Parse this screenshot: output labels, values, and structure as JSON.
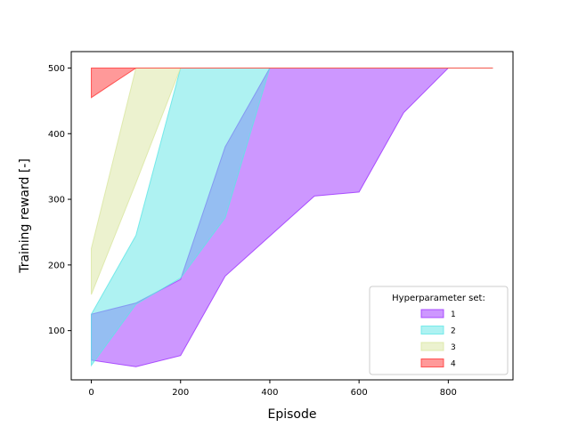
{
  "chart_data": {
    "type": "area",
    "title": "",
    "xlabel": "Episode",
    "ylabel": "Training reward [-]",
    "xlim": [
      -45,
      945
    ],
    "ylim": [
      25,
      525
    ],
    "xticks": [
      0,
      200,
      400,
      600,
      800
    ],
    "yticks": [
      100,
      200,
      300,
      400,
      500
    ],
    "grid": false,
    "legend": {
      "title": "Hyperparameter set:",
      "placement": "lower-right"
    },
    "series": [
      {
        "name": "1",
        "color": "#9b30ff",
        "x": [
          0,
          100,
          200,
          300,
          400,
          500,
          600,
          700,
          800,
          900
        ],
        "upper": [
          125,
          142,
          178,
          380,
          500,
          500,
          500,
          500,
          500,
          500
        ],
        "lower": [
          55,
          45,
          62,
          183,
          244,
          305,
          311,
          432,
          500,
          500
        ]
      },
      {
        "name": "2",
        "color": "#5ee6e6",
        "x": [
          0,
          100,
          200,
          300,
          400,
          500,
          600,
          700,
          800,
          900
        ],
        "upper": [
          125,
          245,
          500,
          500,
          500,
          500,
          500,
          500,
          500,
          500
        ],
        "lower": [
          47,
          140,
          180,
          272,
          500,
          500,
          500,
          500,
          500,
          500
        ]
      },
      {
        "name": "3",
        "color": "#d9e6a0",
        "x": [
          0,
          100,
          200,
          300,
          400,
          500,
          600,
          700,
          800,
          900
        ],
        "upper": [
          225,
          500,
          500,
          500,
          500,
          500,
          500,
          500,
          500,
          500
        ],
        "lower": [
          155,
          325,
          500,
          500,
          500,
          500,
          500,
          500,
          500,
          500
        ]
      },
      {
        "name": "4",
        "color": "#ff3333",
        "x": [
          0,
          100,
          200,
          300,
          400,
          500,
          600,
          700,
          800,
          900
        ],
        "upper": [
          500,
          500,
          500,
          500,
          500,
          500,
          500,
          500,
          500,
          500
        ],
        "lower": [
          455,
          500,
          500,
          500,
          500,
          500,
          500,
          500,
          500,
          500
        ]
      }
    ]
  }
}
